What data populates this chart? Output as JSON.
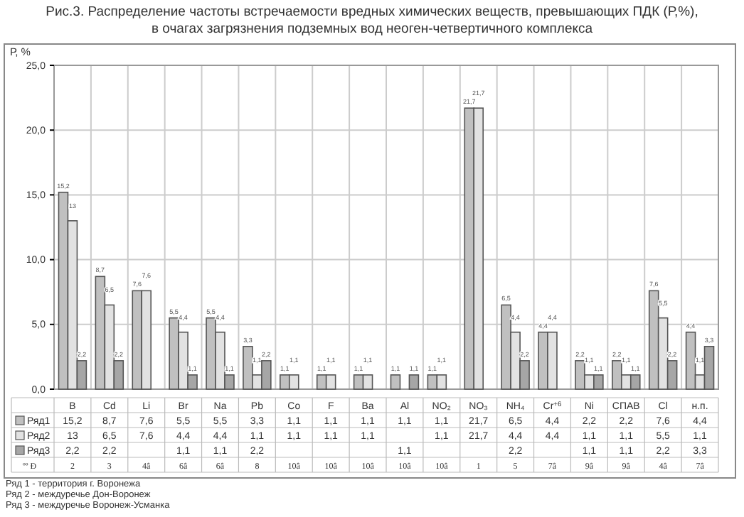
{
  "chart_data": {
    "type": "bar",
    "title": "Рис.3.  Распределение частоты встречаемости вредных химических веществ, превышающих ПДК (Р,%),",
    "subtitle": "в очагах загрязнения подземных вод неоген-четвертичного комплекса",
    "ylabel": "Р, %",
    "categories": [
      "B",
      "Cd",
      "Li",
      "Br",
      "Na",
      "Pb",
      "Co",
      "F",
      "Ba",
      "Al",
      "NO₂",
      "NO₃",
      "NH₄",
      "Cr$^{+6}$",
      "Ni",
      "СПАВ",
      "Cl",
      "н.п."
    ],
    "series": [
      {
        "name": "Ряд1",
        "color": "#c0c0c0",
        "values": [
          15.2,
          8.7,
          7.6,
          5.5,
          5.5,
          3.3,
          1.1,
          1.1,
          1.1,
          1.1,
          1.1,
          21.7,
          6.5,
          4.4,
          2.2,
          2.2,
          7.6,
          4.4
        ],
        "value_labels": [
          "15,2",
          "8,7",
          "7,6",
          "5,5",
          "5,5",
          "3,3",
          "1,1",
          "1,1",
          "1,1",
          "1,1",
          "1,1",
          "21,7",
          "6,5",
          "4,4",
          "2,2",
          "2,2",
          "7,6",
          "4,4"
        ]
      },
      {
        "name": "Ряд2",
        "color": "#e2e2e2",
        "values": [
          13,
          6.5,
          7.6,
          4.4,
          4.4,
          1.1,
          1.1,
          1.1,
          1.1,
          null,
          1.1,
          21.7,
          4.4,
          4.4,
          1.1,
          1.1,
          5.5,
          1.1
        ],
        "value_labels": [
          "13",
          "6,5",
          "7,6",
          "4,4",
          "4,4",
          "1,1",
          "1,1",
          "1,1",
          "1,1",
          null,
          "1,1",
          "21,7",
          "4,4",
          "4,4",
          "1,1",
          "1,1",
          "5,5",
          "1,1"
        ]
      },
      {
        "name": "Ряд3",
        "color": "#a6a6a6",
        "values": [
          2.2,
          2.2,
          null,
          1.1,
          1.1,
          2.2,
          null,
          null,
          null,
          1.1,
          null,
          null,
          2.2,
          null,
          1.1,
          1.1,
          2.2,
          3.3
        ],
        "value_labels": [
          "2,2",
          "2,2",
          null,
          "1,1",
          "1,1",
          "2,2",
          null,
          null,
          null,
          "1,1",
          null,
          null,
          "2,2",
          null,
          "1,1",
          "1,1",
          "2,2",
          "3,3"
        ]
      }
    ],
    "ylim": [
      0,
      25
    ],
    "yticks": [
      {
        "value": 0,
        "label": "0,0"
      },
      {
        "value": 5,
        "label": "5,0"
      },
      {
        "value": 10,
        "label": "10,0"
      },
      {
        "value": 15,
        "label": "15,0"
      },
      {
        "value": 20,
        "label": "20,0"
      },
      {
        "value": 25,
        "label": "25,0"
      }
    ],
    "grid": true,
    "legend": "bottom",
    "annotations": [
      "ºº Ð",
      "2",
      "3",
      "4â",
      "6â",
      "6â",
      "8",
      "10â",
      "10â",
      "10â",
      "10â",
      "10â",
      "1",
      "5",
      "7â",
      "9â",
      "9â",
      "4â",
      "7â",
      "Ряд 1 - территория  г.  Воронежа",
      "Ряд 2 - междуречье Дон-Воронеж",
      "Ряд 3 - междуречье Воронеж-Усманка"
    ]
  }
}
